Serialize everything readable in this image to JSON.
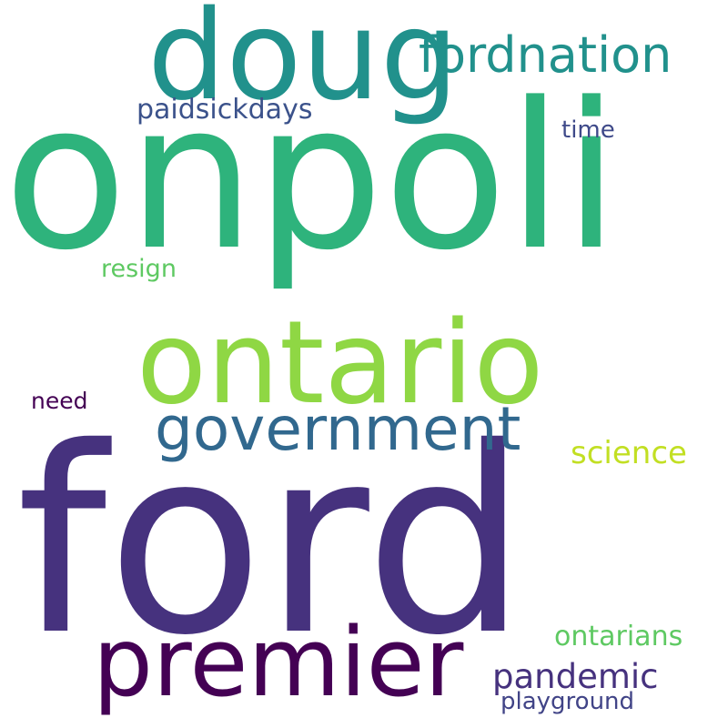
{
  "word_cloud": {
    "background": "#ffffff",
    "words": [
      {
        "text": "ford",
        "color": "#46327e"
      },
      {
        "text": "onpoli",
        "color": "#2eb37c"
      },
      {
        "text": "ontario",
        "color": "#8fd744"
      },
      {
        "text": "doug",
        "color": "#21918c"
      },
      {
        "text": "premier",
        "color": "#440154"
      },
      {
        "text": "government",
        "color": "#31688e"
      },
      {
        "text": "fordnation",
        "color": "#21918c"
      },
      {
        "text": "pandemic",
        "color": "#46327e"
      },
      {
        "text": "paidsickdays",
        "color": "#3b528b"
      },
      {
        "text": "science",
        "color": "#c2df23"
      },
      {
        "text": "ontarians",
        "color": "#5ec962"
      },
      {
        "text": "playground",
        "color": "#414487"
      },
      {
        "text": "resign",
        "color": "#5ec962"
      },
      {
        "text": "time",
        "color": "#3e4989"
      },
      {
        "text": "need",
        "color": "#440154"
      }
    ]
  }
}
